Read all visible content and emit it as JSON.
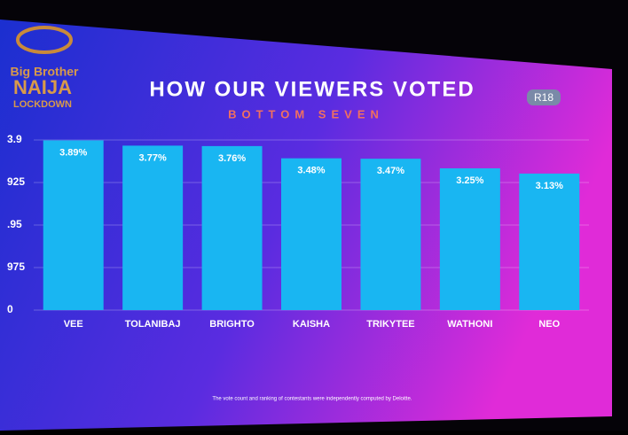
{
  "logo": [
    "Big Brother",
    "NAIJA",
    "LOCKDOWN"
  ],
  "badge": "R18",
  "footnote": "The vote count and ranking of contestants were independently computed by Deloitte.",
  "chart_data": {
    "type": "bar",
    "title": "HOW OUR VIEWERS VOTED",
    "subtitle": "BOTTOM SEVEN",
    "categories": [
      "VEE",
      "TOLANIBAJ",
      "BRIGHTO",
      "KAISHA",
      "TRIKYTEE",
      "WATHONI",
      "NEO"
    ],
    "values": [
      3.89,
      3.77,
      3.76,
      3.48,
      3.47,
      3.25,
      3.13
    ],
    "value_labels": [
      "3.89%",
      "3.77%",
      "3.76%",
      "3.48%",
      "3.47%",
      "3.25%",
      "3.13%"
    ],
    "color": "#19b6f2",
    "ylim": [
      0,
      3.9
    ],
    "yticks": [
      0,
      {
        "value": 0.975,
        "label": "975"
      },
      {
        "value": 1.95,
        "label": ".95"
      },
      {
        "value": 2.925,
        "label": "925"
      },
      3.9
    ],
    "grid": true
  }
}
